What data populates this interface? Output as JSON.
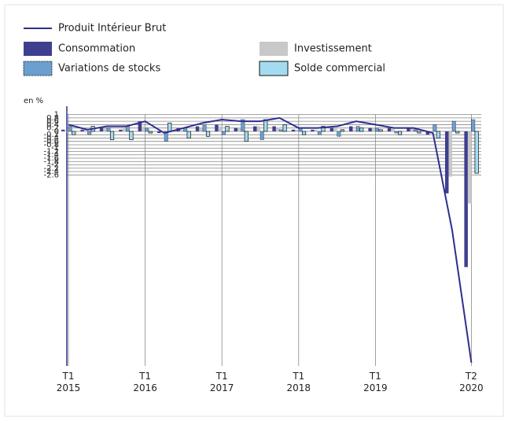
{
  "chart_data": {
    "type": "bar",
    "unit_label": "en %",
    "categories": [
      "T1\n2015",
      null,
      null,
      null,
      "T1\n2016",
      null,
      null,
      null,
      "T1\n2017",
      null,
      null,
      null,
      "T1\n2018",
      null,
      null,
      null,
      "T1\n2019",
      null,
      null,
      null,
      null,
      "T2\n2020"
    ],
    "series": [
      {
        "name": "Produit Intérieur Brut",
        "type": "line",
        "color": "#2e2e8f",
        "values": [
          0.4,
          0.1,
          0.3,
          0.3,
          0.6,
          -0.1,
          0.2,
          0.5,
          0.7,
          0.6,
          0.6,
          0.8,
          0.2,
          0.2,
          0.3,
          0.6,
          0.4,
          0.2,
          0.2,
          -0.1,
          -5.9,
          -13.8
        ]
      },
      {
        "name": "Consommation",
        "color": "#3f3f8f",
        "values": [
          0.1,
          0.1,
          0.2,
          0.1,
          0.6,
          -0.1,
          0.2,
          0.3,
          0.4,
          0.2,
          0.3,
          0.3,
          0.1,
          0.1,
          0.2,
          0.3,
          0.2,
          0.2,
          0.2,
          -0.2,
          -3.7,
          -8.1
        ]
      },
      {
        "name": "Investissement",
        "color": "#c8c8c8",
        "values": [
          0,
          0.1,
          0.2,
          0.3,
          0.3,
          0,
          0.1,
          0.2,
          0.3,
          0.2,
          0.3,
          0.2,
          0.1,
          0.1,
          0.2,
          0.1,
          0.2,
          0.2,
          0.2,
          -0.1,
          -2.7,
          -4.3
        ]
      },
      {
        "name": "Variations de stocks",
        "color": "#6b9fd0",
        "values": [
          0.3,
          -0.2,
          0.2,
          0.3,
          0.2,
          -0.6,
          0.2,
          0.4,
          -0.2,
          0.7,
          -0.5,
          0.1,
          0.2,
          -0.2,
          -0.3,
          0.3,
          0.2,
          -0.1,
          0.1,
          0.4,
          0.6,
          0.7
        ]
      },
      {
        "name": "Solde commercial",
        "color": "#a3dcf0",
        "values": [
          -0.2,
          0.3,
          -0.5,
          -0.5,
          -0.1,
          0.5,
          -0.4,
          -0.3,
          0.3,
          -0.6,
          0.7,
          0.4,
          -0.2,
          0.3,
          0.1,
          0.2,
          0.1,
          -0.2,
          -0.1,
          -0.4,
          -0.1,
          -2.5
        ]
      }
    ],
    "ylim": [
      -14,
      1.5
    ],
    "yticks": [
      1,
      0.8,
      0.6,
      0.4,
      0.2,
      0,
      -0.2,
      -0.4,
      -0.6,
      -0.8,
      -1,
      -1.2,
      -1.4,
      -1.6,
      -1.8,
      -2,
      -2.2,
      -2.4,
      -2.6
    ],
    "grid": true
  }
}
